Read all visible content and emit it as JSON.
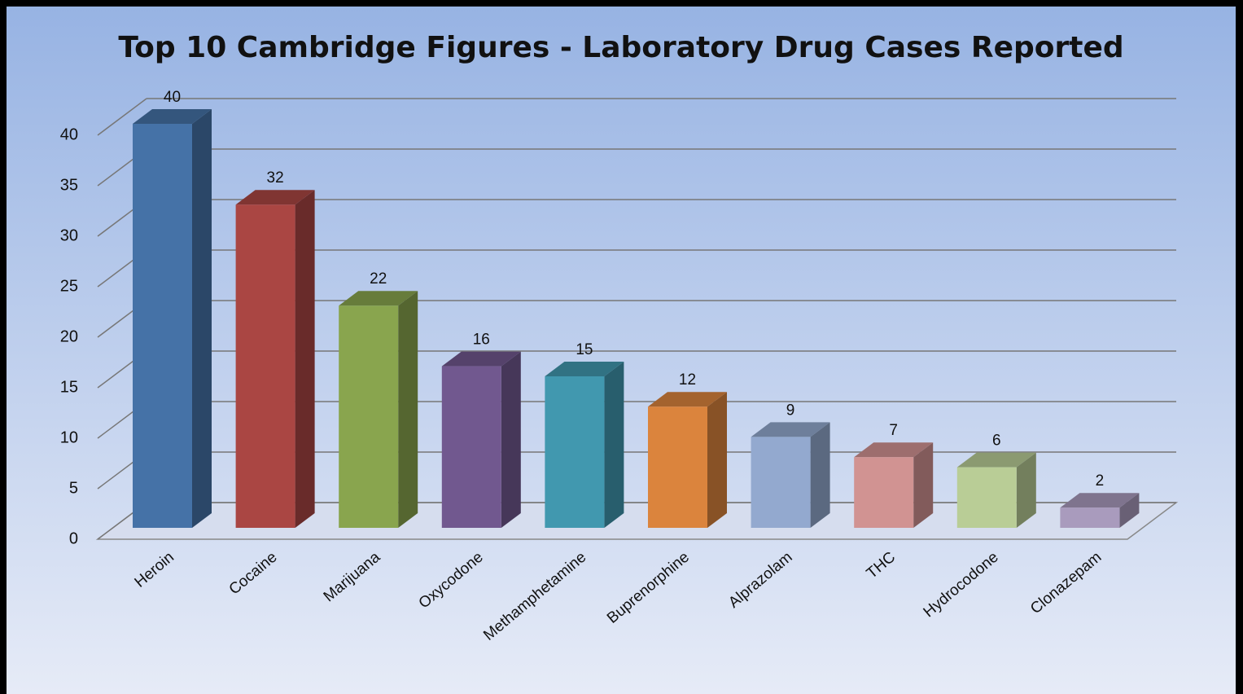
{
  "chart_data": {
    "type": "bar3d",
    "title": "Top 10 Cambridge Figures - Laboratory Drug Cases Reported",
    "categories": [
      "Heroin",
      "Cocaine",
      "Marijuana",
      "Oxycodone",
      "Methamphetamine",
      "Buprenorphine",
      "Alprazolam",
      "THC",
      "Hydrocodone",
      "Clonazepam"
    ],
    "values": [
      40,
      32,
      22,
      16,
      15,
      12,
      9,
      7,
      6,
      2
    ],
    "colors": [
      "#4572a7",
      "#aa4643",
      "#89a54e",
      "#71588f",
      "#4198af",
      "#db843d",
      "#93a9cf",
      "#d19392",
      "#b9cd96",
      "#a99bbd"
    ],
    "ylim": [
      0,
      40
    ],
    "yticks": [
      0,
      5,
      10,
      15,
      20,
      25,
      30,
      35,
      40
    ],
    "grid": true
  }
}
